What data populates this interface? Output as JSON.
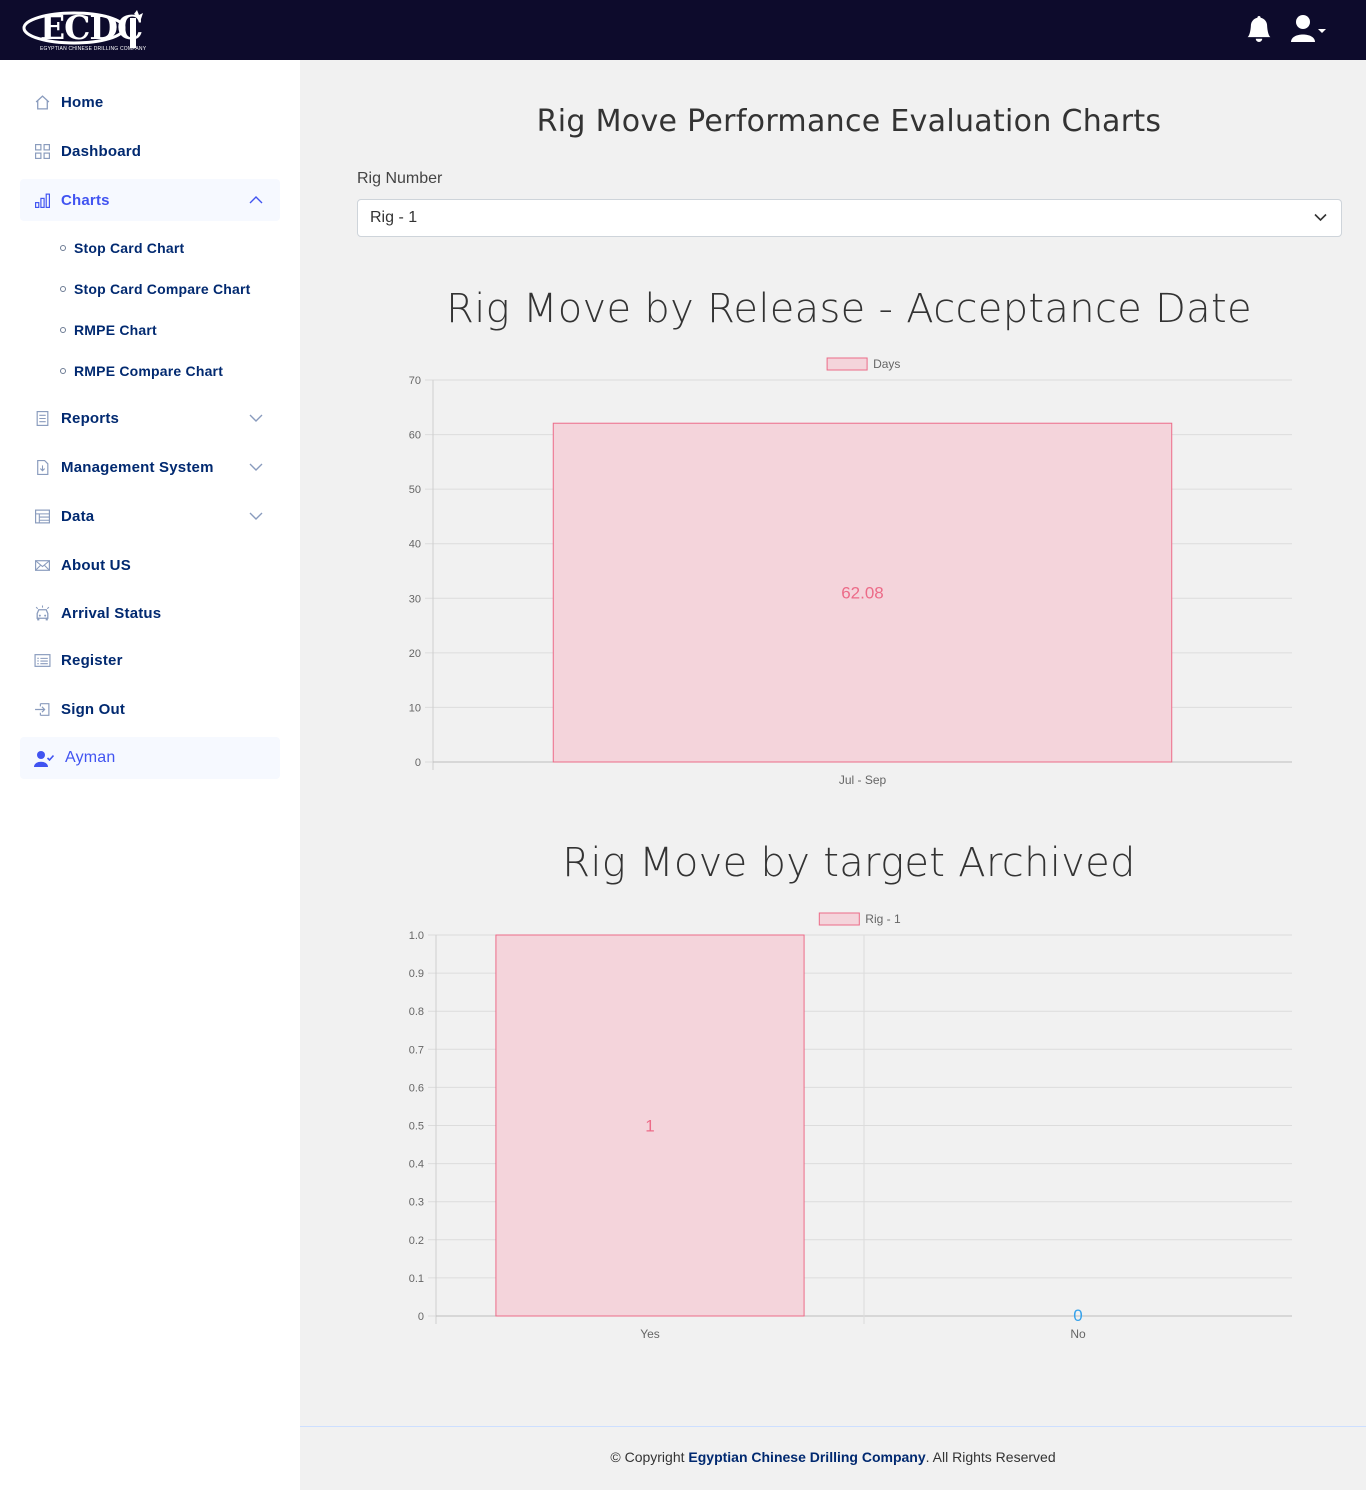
{
  "header": {
    "logo_text": "ECDC",
    "logo_subtitle": "EGYPTIAN CHINESE DRILLING COMPANY",
    "bell_icon": "bell-icon",
    "user_icon": "user-dropdown-icon"
  },
  "sidebar": {
    "items": [
      {
        "label": "Home",
        "icon": "house-icon"
      },
      {
        "label": "Dashboard",
        "icon": "grid-icon"
      },
      {
        "label": "Charts",
        "icon": "bar-chart-icon",
        "expanded": true
      },
      {
        "label": "Reports",
        "icon": "journal-icon"
      },
      {
        "label": "Management System",
        "icon": "file-download-icon"
      },
      {
        "label": "Data",
        "icon": "table-icon"
      },
      {
        "label": "About US",
        "icon": "envelope-icon"
      },
      {
        "label": "Arrival Status",
        "icon": "car-icon"
      },
      {
        "label": "Register",
        "icon": "card-list-icon"
      },
      {
        "label": "Sign Out",
        "icon": "box-arrow-in-icon"
      },
      {
        "label": "Ayman",
        "icon": "person-check-icon"
      }
    ],
    "charts_sub": [
      "Stop Card Chart",
      "Stop Card Compare Chart",
      "RMPE Chart",
      "RMPE Compare Chart"
    ]
  },
  "main": {
    "title": "Rig Move Performance Evaluation Charts",
    "rig_label": "Rig Number",
    "rig_selected": "Rig - 1"
  },
  "chart_data": [
    {
      "type": "bar",
      "title": "Rig Move by Release - Acceptance Date",
      "categories": [
        "Jul - Sep"
      ],
      "series": [
        {
          "name": "Days",
          "values": [
            62.08
          ]
        }
      ],
      "data_labels": [
        "62.08"
      ],
      "ylim": [
        0,
        70
      ],
      "yticks": [
        "0",
        "10",
        "20",
        "30",
        "40",
        "50",
        "60",
        "70"
      ],
      "legend": "top",
      "grid": true,
      "colors": {
        "fill": "#f4d4db",
        "stroke": "#ec6b88",
        "label": "#ec6b88"
      }
    },
    {
      "type": "bar",
      "title": "Rig Move by target Archived",
      "categories": [
        "Yes",
        "No"
      ],
      "series": [
        {
          "name": "Rig - 1",
          "values": [
            1,
            0
          ]
        }
      ],
      "data_labels": [
        "1",
        "0"
      ],
      "ylim": [
        0,
        1.0
      ],
      "yticks": [
        "0",
        "0.1",
        "0.2",
        "0.3",
        "0.4",
        "0.5",
        "0.6",
        "0.7",
        "0.8",
        "0.9",
        "1.0"
      ],
      "legend": "top",
      "grid": true,
      "colors": {
        "fill": "#f4d4db",
        "stroke": "#ec6b88",
        "label": "#ec6b88",
        "zero_label": "#36a2eb"
      }
    }
  ],
  "footer": {
    "prefix": "© Copyright",
    "company": "Egyptian Chinese Drilling Company",
    "suffix": ". All Rights Reserved"
  }
}
